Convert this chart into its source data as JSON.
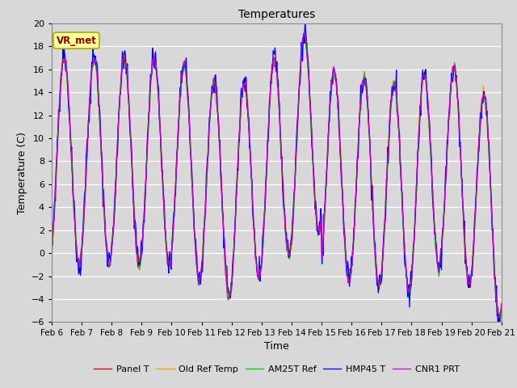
{
  "title": "Temperatures",
  "xlabel": "Time",
  "ylabel": "Temperature (C)",
  "ylim": [
    -6,
    20
  ],
  "yticks": [
    -6,
    -4,
    -2,
    0,
    2,
    4,
    6,
    8,
    10,
    12,
    14,
    16,
    18,
    20
  ],
  "xtick_labels": [
    "Feb 6",
    "Feb 7",
    "Feb 8",
    "Feb 9",
    "Feb 10",
    "Feb 11",
    "Feb 12",
    "Feb 13",
    "Feb 14",
    "Feb 15",
    "Feb 16",
    "Feb 17",
    "Feb 18",
    "Feb 19",
    "Feb 20",
    "Feb 21"
  ],
  "series_colors": [
    "#cc0000",
    "#ff9900",
    "#00cc00",
    "#0000ff",
    "#cc00cc"
  ],
  "series_labels": [
    "Panel T",
    "Old Ref Temp",
    "AM25T Ref",
    "HMP45 T",
    "CNR1 PRT"
  ],
  "plot_bg_color": "#d8d8d8",
  "grid_color": "#ffffff",
  "annotation_text": "VR_met",
  "annotation_box_color": "#ffff99",
  "annotation_text_color": "#8b0000",
  "annotation_edge_color": "#aaaa00",
  "n_points": 720,
  "n_days": 15
}
